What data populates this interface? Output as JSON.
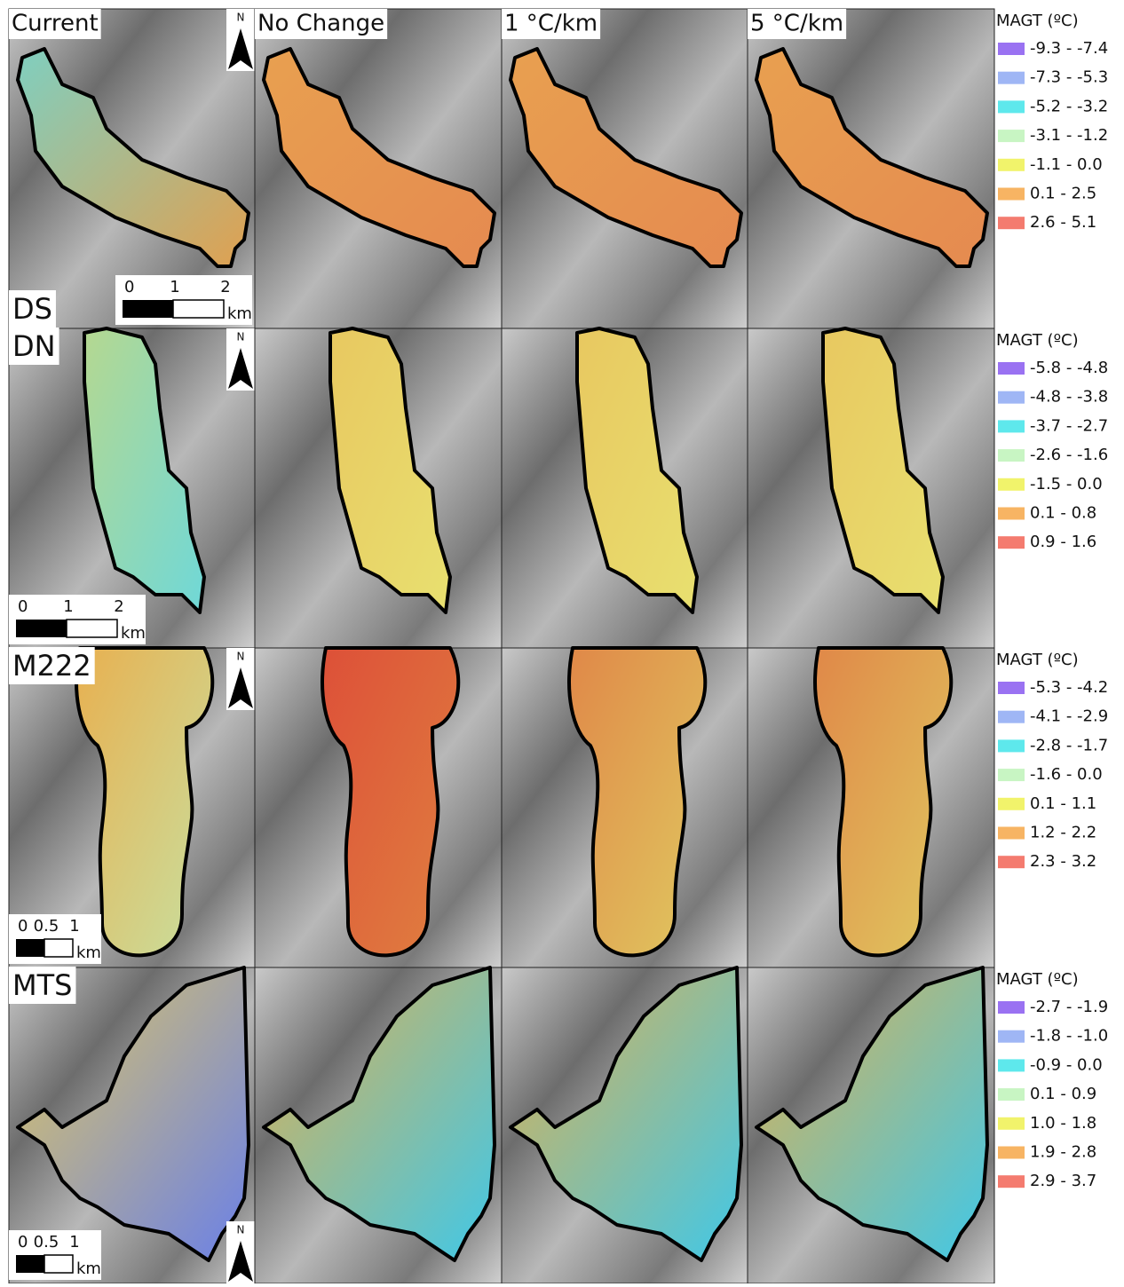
{
  "columns": [
    "Current",
    "No Change",
    "1 °C/km",
    "5 °C/km"
  ],
  "rows": [
    {
      "label": "DS",
      "north": "N",
      "scale_ticks": [
        0,
        1,
        2
      ],
      "scale_unit": "km",
      "legend": {
        "title": "MAGT (ºC)",
        "items": [
          {
            "label": "-9.3 - -7.4",
            "color": "#9a72f2"
          },
          {
            "label": "-7.3 - -5.3",
            "color": "#9fb6f5"
          },
          {
            "label": "-5.2 - -3.2",
            "color": "#5ee8ec"
          },
          {
            "label": "-3.1 - -1.2",
            "color": "#c8f5c3"
          },
          {
            "label": "-1.1 - 0.0",
            "color": "#f1f36b"
          },
          {
            "label": "0.1 - 2.5",
            "color": "#f7b463"
          },
          {
            "label": "2.6 - 5.1",
            "color": "#f47b6f"
          }
        ]
      }
    },
    {
      "label": "DN",
      "north": "N",
      "scale_ticks": [
        0,
        1,
        2
      ],
      "scale_unit": "km",
      "legend": {
        "title": "MAGT (ºC)",
        "items": [
          {
            "label": "-5.8 - -4.8",
            "color": "#9a72f2"
          },
          {
            "label": "-4.8 - -3.8",
            "color": "#9fb6f5"
          },
          {
            "label": "-3.7 - -2.7",
            "color": "#5ee8ec"
          },
          {
            "label": "-2.6 - -1.6",
            "color": "#c8f5c3"
          },
          {
            "label": "-1.5 - 0.0",
            "color": "#f1f36b"
          },
          {
            "label": "0.1 - 0.8",
            "color": "#f7b463"
          },
          {
            "label": "0.9 - 1.6",
            "color": "#f47b6f"
          }
        ]
      }
    },
    {
      "label": "M222",
      "north": "N",
      "scale_ticks": [
        0,
        0.5,
        1
      ],
      "scale_unit": "km",
      "legend": {
        "title": "MAGT (ºC)",
        "items": [
          {
            "label": "-5.3 - -4.2",
            "color": "#9a72f2"
          },
          {
            "label": "-4.1 - -2.9",
            "color": "#9fb6f5"
          },
          {
            "label": "-2.8 - -1.7",
            "color": "#5ee8ec"
          },
          {
            "label": "-1.6 - 0.0",
            "color": "#c8f5c3"
          },
          {
            "label": "0.1 - 1.1",
            "color": "#f1f36b"
          },
          {
            "label": "1.2 - 2.2",
            "color": "#f7b463"
          },
          {
            "label": "2.3 - 3.2",
            "color": "#f47b6f"
          }
        ]
      }
    },
    {
      "label": "MTS",
      "north": "N",
      "scale_ticks": [
        0,
        0.5,
        1
      ],
      "scale_unit": "km",
      "legend": {
        "title": "MAGT (ºC)",
        "items": [
          {
            "label": "-2.7 - -1.9",
            "color": "#9a72f2"
          },
          {
            "label": "-1.8 - -1.0",
            "color": "#9fb6f5"
          },
          {
            "label": "-0.9 - 0.0",
            "color": "#5ee8ec"
          },
          {
            "label": "0.1 - 0.9",
            "color": "#c8f5c3"
          },
          {
            "label": "1.0 - 1.8",
            "color": "#f1f36b"
          },
          {
            "label": "1.9 - 2.8",
            "color": "#f7b463"
          },
          {
            "label": "2.9 - 3.7",
            "color": "#f47b6f"
          }
        ]
      }
    }
  ]
}
